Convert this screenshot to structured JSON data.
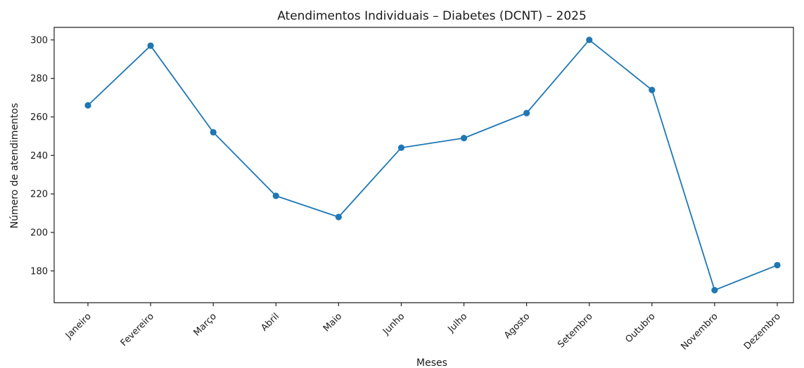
{
  "chart_data": {
    "type": "line",
    "title": "Atendimentos Individuais – Diabetes (DCNT) – 2025",
    "xlabel": "Meses",
    "ylabel": "Número de atendimentos",
    "categories": [
      "Janeiro",
      "Fevereiro",
      "Março",
      "Abril",
      "Maio",
      "Junho",
      "Julho",
      "Agosto",
      "Setembro",
      "Outubro",
      "Novembro",
      "Dezembro"
    ],
    "series": [
      {
        "values": [
          266,
          297,
          252,
          219,
          208,
          244,
          249,
          262,
          300,
          274,
          170,
          183
        ],
        "color": "#1f77b4"
      }
    ],
    "yticks": [
      180,
      200,
      220,
      240,
      260,
      280,
      300
    ],
    "ylim": [
      163.5,
      306.5
    ],
    "grid": false,
    "legend": "none",
    "marker": "circle"
  }
}
